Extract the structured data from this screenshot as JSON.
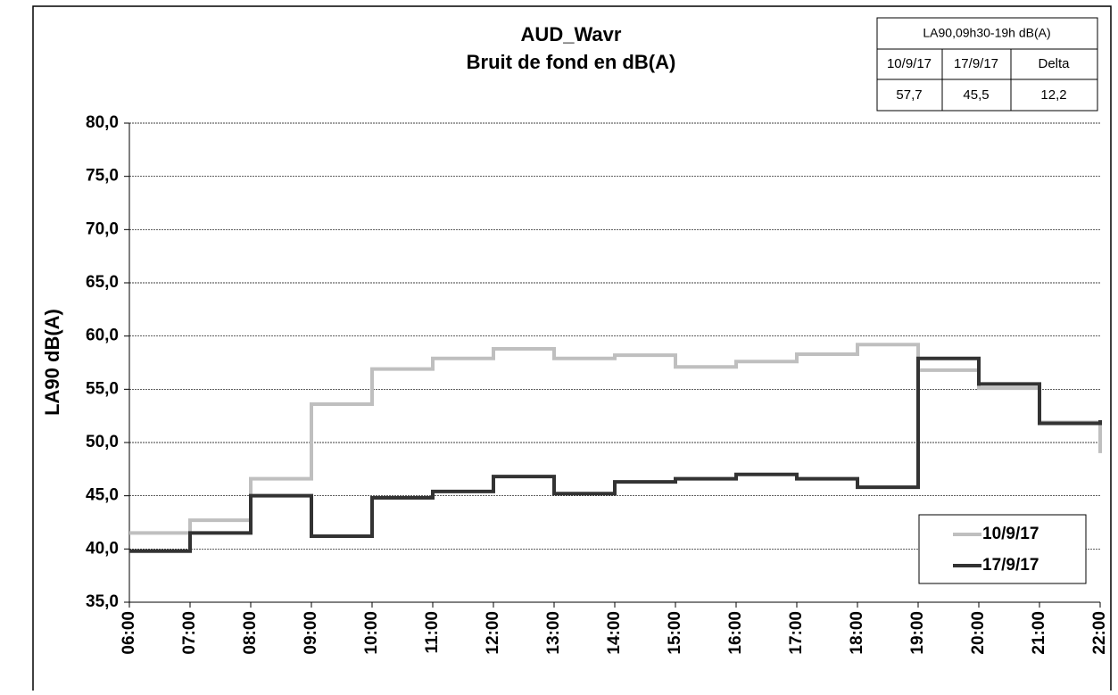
{
  "chart_data": {
    "type": "step-line",
    "title": "AUD_Wavr",
    "subtitle": "Bruit de fond en dB(A)",
    "y_label": "LA90 dB(A)",
    "x": [
      "06:00",
      "07:00",
      "08:00",
      "09:00",
      "10:00",
      "11:00",
      "12:00",
      "13:00",
      "14:00",
      "15:00",
      "16:00",
      "17:00",
      "18:00",
      "19:00",
      "20:00",
      "21:00",
      "22:00"
    ],
    "series": [
      {
        "name": "10/9/17",
        "color": "#bfbfbf",
        "values": [
          41.5,
          42.7,
          46.6,
          53.6,
          56.9,
          57.9,
          58.8,
          57.9,
          58.2,
          57.1,
          57.6,
          58.3,
          59.2,
          56.8,
          55.1,
          51.9,
          49.0
        ]
      },
      {
        "name": "17/9/17",
        "color": "#333333",
        "values": [
          39.8,
          41.5,
          45.0,
          41.2,
          44.8,
          45.4,
          46.8,
          45.2,
          46.3,
          46.6,
          47.0,
          46.6,
          45.8,
          57.9,
          55.5,
          51.8,
          52.1
        ]
      }
    ],
    "ylim": [
      35,
      80
    ],
    "yticks": [
      {
        "value": 35,
        "label": "35,0"
      },
      {
        "value": 40,
        "label": "40,0"
      },
      {
        "value": 45,
        "label": "45,0"
      },
      {
        "value": 50,
        "label": "50,0"
      },
      {
        "value": 55,
        "label": "55,0"
      },
      {
        "value": 60,
        "label": "60,0"
      },
      {
        "value": 65,
        "label": "65,0"
      },
      {
        "value": 70,
        "label": "70,0"
      },
      {
        "value": 75,
        "label": "75,0"
      },
      {
        "value": 80,
        "label": "80,0"
      }
    ],
    "grid": true,
    "legend": "lower right",
    "inset_table": {
      "header": "LA90,09h30-19h dB(A)",
      "columns": [
        "10/9/17",
        "17/9/17",
        "Delta"
      ],
      "row": [
        "57,7",
        "45,5",
        "12,2"
      ]
    }
  }
}
